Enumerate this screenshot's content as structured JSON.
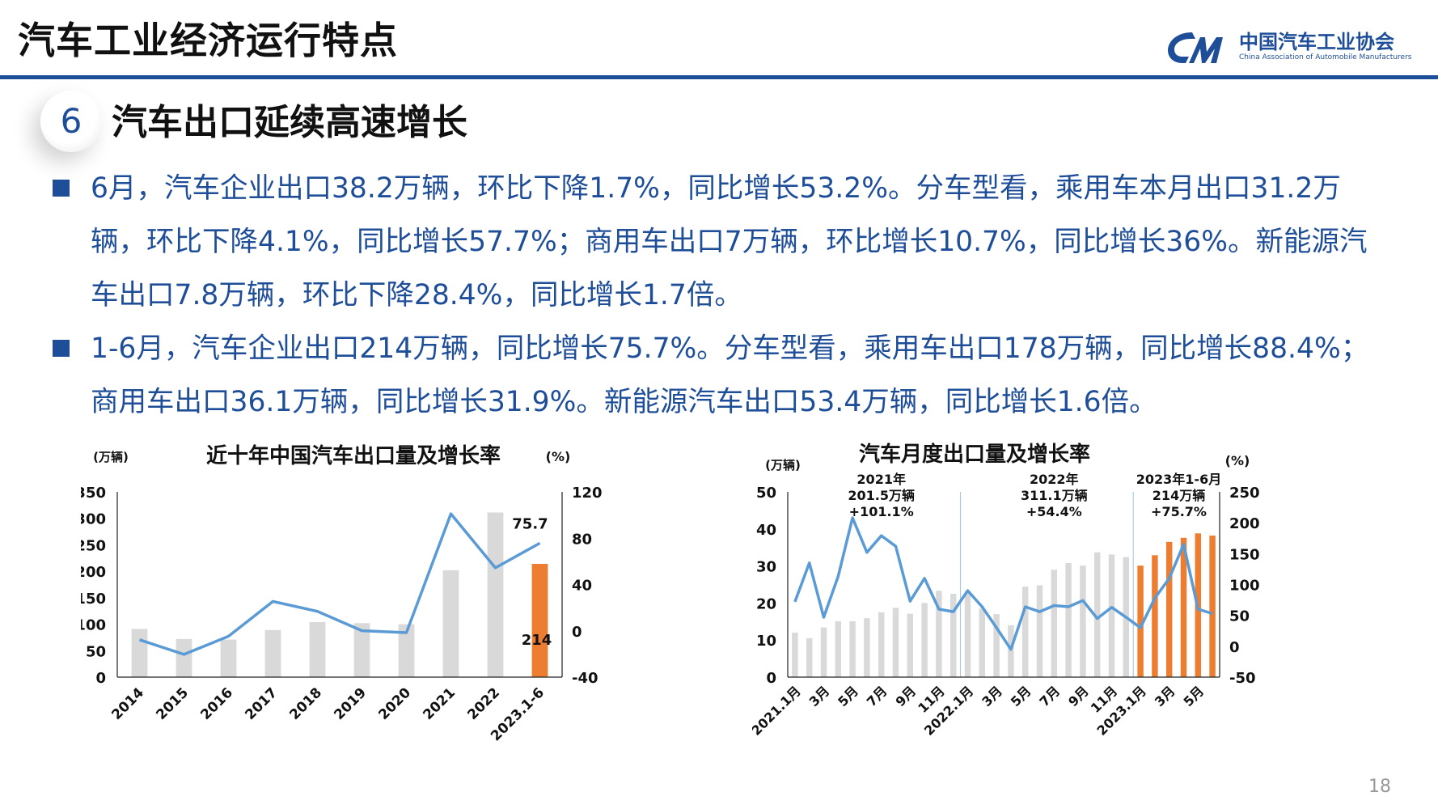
{
  "header": {
    "title": "汽车工业经济运行特点"
  },
  "logo": {
    "cn": "中国汽车工业协会",
    "en": "China Association of Automobile Manufacturers"
  },
  "section": {
    "number": "6",
    "title": "汽车出口延续高速增长"
  },
  "bullets": [
    "6月，汽车企业出口38.2万辆，环比下降1.7%，同比增长53.2%。分车型看，乘用车本月出口31.2万辆，环比下降4.1%，同比增长57.7%；商用车出口7万辆，环比增长10.7%，同比增长36%。新能源汽车出口7.8万辆，环比下降28.4%，同比增长1.7倍。",
    "1-6月，汽车企业出口214万辆，同比增长75.7%。分车型看，乘用车出口178万辆，同比增长88.4%；商用车出口36.1万辆，同比增长31.9%。新能源汽车出口53.4万辆，同比增长1.6倍。"
  ],
  "page_number": "18",
  "colors": {
    "brand": "#1f4e99",
    "bar_gray": "#d9d9d9",
    "bar_highlight": "#ed7d31",
    "line": "#5b9bd5"
  },
  "chart_data": [
    {
      "type": "bar",
      "title": "近十年中国汽车出口量及增长率",
      "ylabel": "(万辆)",
      "y2label": "(%)",
      "categories": [
        "2014",
        "2015",
        "2016",
        "2017",
        "2018",
        "2019",
        "2020",
        "2021",
        "2022",
        "2023.1-6"
      ],
      "ylim": [
        0,
        350
      ],
      "yticks": [
        0,
        50,
        100,
        150,
        200,
        250,
        300,
        350
      ],
      "y2lim": [
        -40,
        120
      ],
      "y2ticks": [
        -40,
        0,
        40,
        80,
        120
      ],
      "series": [
        {
          "axis": "left",
          "type": "bar",
          "values": [
            91,
            72,
            71,
            89,
            104,
            102,
            100,
            202,
            311,
            214
          ]
        },
        {
          "axis": "right",
          "type": "line",
          "values": [
            -7.7,
            -20.4,
            -4.7,
            25.4,
            16.8,
            0.1,
            -1.6,
            101.1,
            54.4,
            75.7
          ]
        }
      ],
      "highlight_index": 9,
      "data_labels": [
        {
          "text": "75.7"
        },
        {
          "text": "214"
        }
      ]
    },
    {
      "type": "bar",
      "title": "汽车月度出口量及增长率",
      "ylabel": "(万辆)",
      "y2label": "(%)",
      "categories": [
        "2021.1月",
        "2月",
        "3月",
        "4月",
        "5月",
        "6月",
        "7月",
        "8月",
        "9月",
        "10月",
        "11月",
        "12月",
        "2022.1月",
        "2月",
        "3月",
        "4月",
        "5月",
        "6月",
        "7月",
        "8月",
        "9月",
        "10月",
        "11月",
        "12月",
        "2023.1月",
        "2月",
        "3月",
        "4月",
        "5月",
        "6月"
      ],
      "tick_labels": [
        "2021.1月",
        "3月",
        "5月",
        "7月",
        "9月",
        "11月",
        "2022.1月",
        "3月",
        "5月",
        "7月",
        "9月",
        "11月",
        "2023.1月",
        "3月",
        "5月"
      ],
      "ylim": [
        0,
        50
      ],
      "yticks": [
        0,
        10,
        20,
        30,
        40,
        50
      ],
      "y2lim": [
        -50,
        250
      ],
      "y2ticks": [
        -50,
        0,
        50,
        100,
        150,
        200,
        250
      ],
      "series": [
        {
          "axis": "left",
          "type": "bar",
          "values": [
            12,
            10.5,
            13.4,
            15.1,
            15.1,
            15.9,
            17.5,
            18.7,
            17.1,
            20.0,
            23.3,
            22.5,
            23.1,
            18.5,
            17.0,
            14.0,
            24.4,
            24.8,
            29.0,
            30.8,
            30.1,
            33.7,
            33.1,
            32.4,
            30.1,
            32.9,
            36.5,
            37.6,
            38.8,
            38.2
          ]
        },
        {
          "axis": "right",
          "type": "line",
          "values": [
            72,
            135,
            47,
            113,
            208,
            152,
            179,
            162,
            73,
            110,
            60,
            56,
            90,
            64,
            30,
            -5,
            64,
            56,
            66,
            64,
            74,
            45,
            63,
            47,
            30,
            78,
            110,
            165,
            60,
            53
          ]
        }
      ],
      "highlight_range": [
        24,
        29
      ],
      "annotations": [
        {
          "year": "2021年",
          "total": "201.5万辆",
          "growth": "+101.1%"
        },
        {
          "year": "2022年",
          "total": "311.1万辆",
          "growth": "+54.4%"
        },
        {
          "year": "2023年1-6月",
          "total": "214万辆",
          "growth": "+75.7%"
        }
      ]
    }
  ]
}
